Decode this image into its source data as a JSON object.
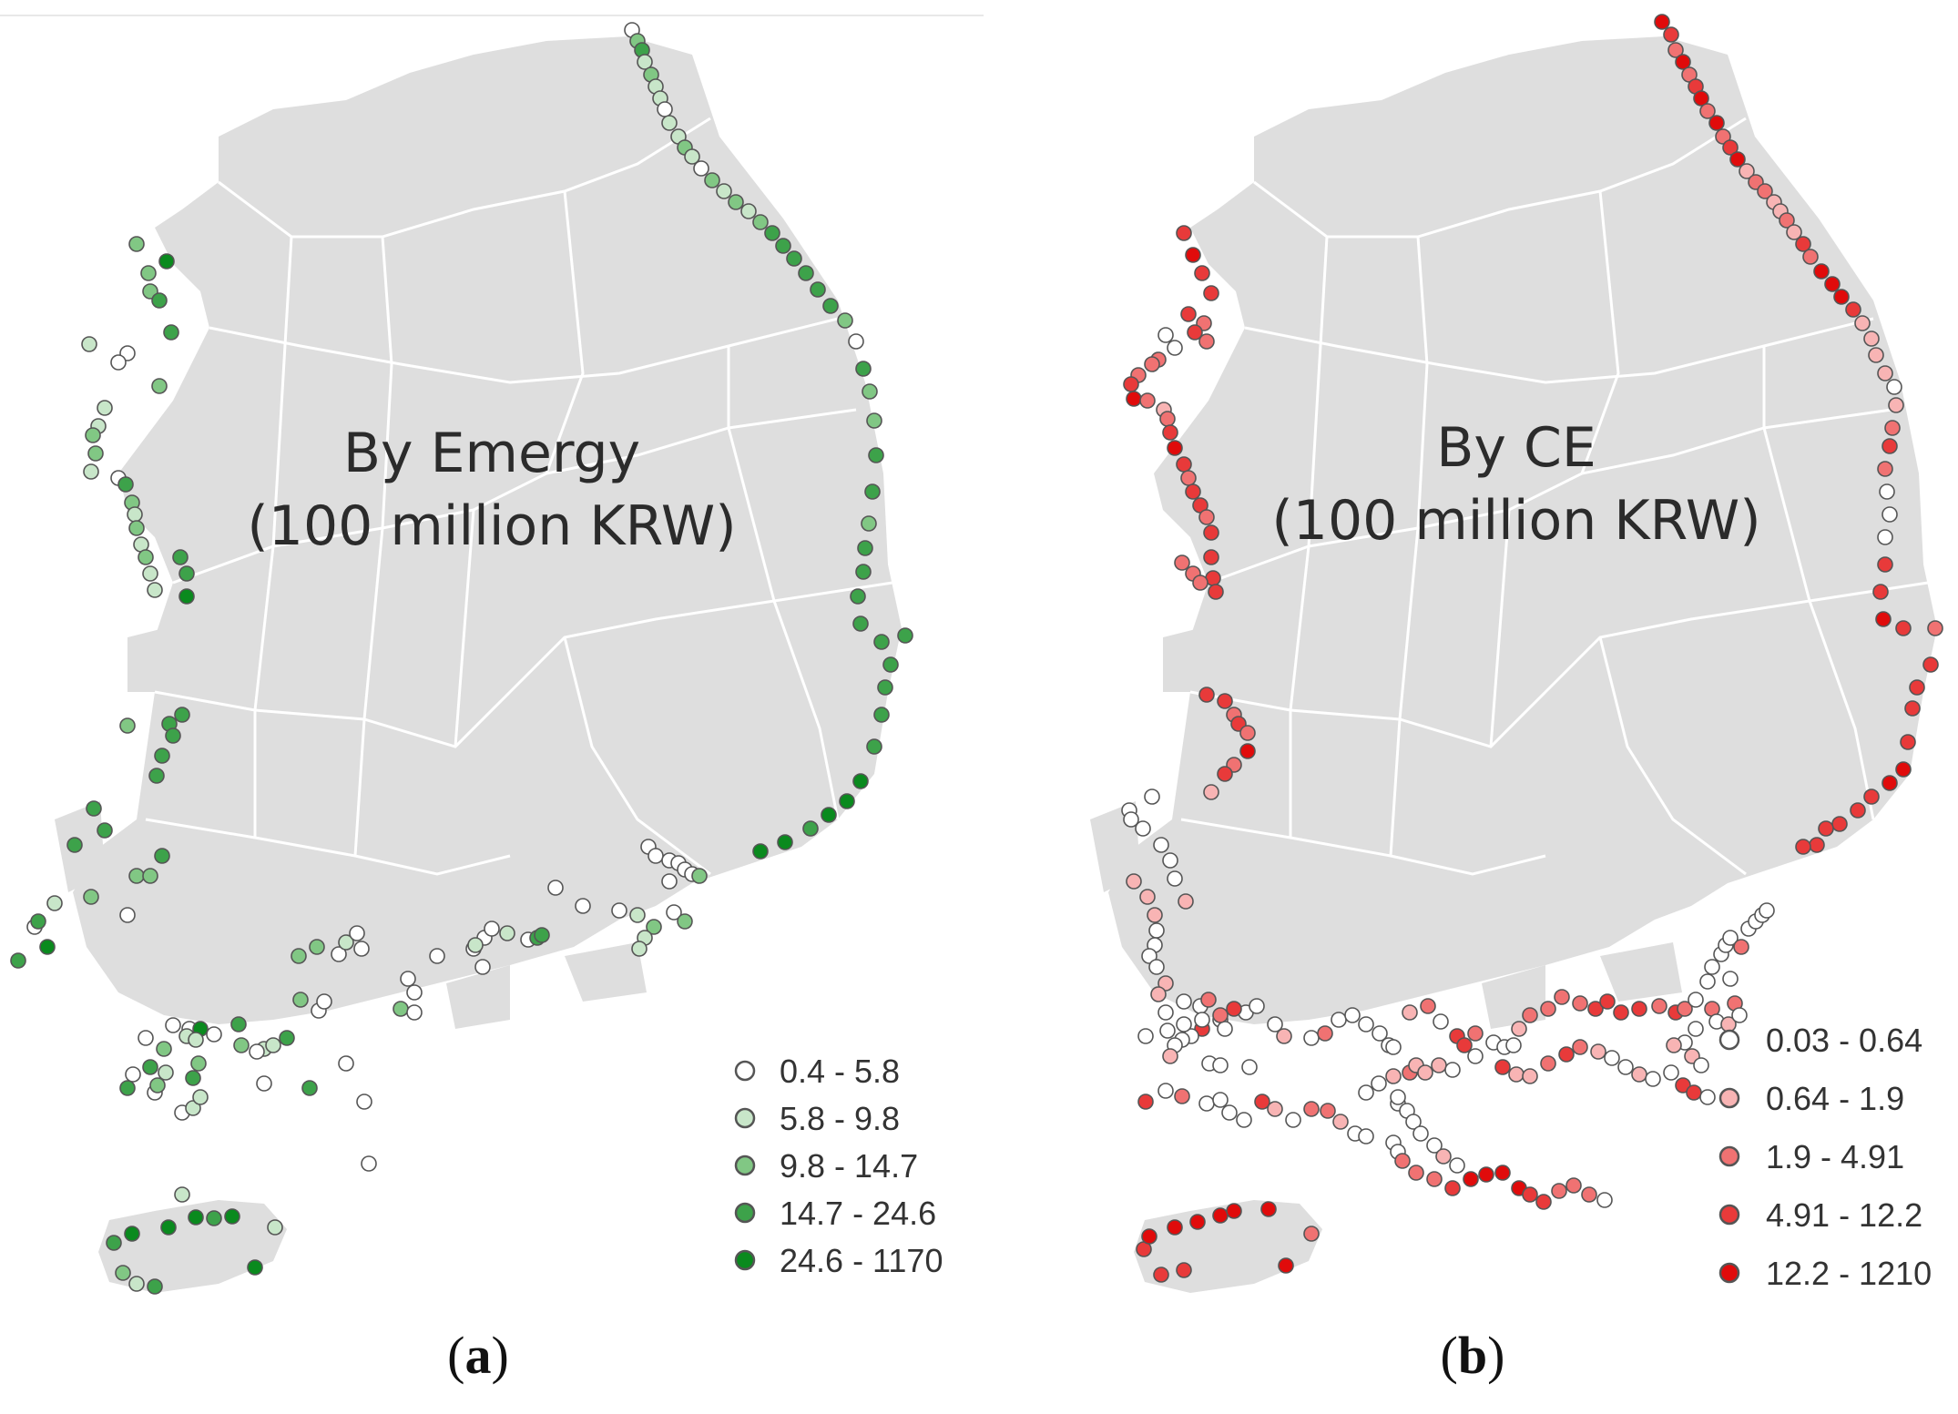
{
  "panels": [
    {
      "id": "a",
      "title_line1": "By Emergy",
      "title_line2": "(100 million KRW)",
      "caption_open": "(",
      "caption_letter": "a",
      "caption_close": ")",
      "stroke_color": "#555555",
      "legend": [
        {
          "label": "0.4 - 5.8",
          "color": "#ffffff"
        },
        {
          "label": "5.8 - 9.8",
          "color": "#c8e6c9"
        },
        {
          "label": "9.8 - 14.7",
          "color": "#81c784"
        },
        {
          "label": "14.7 - 24.6",
          "color": "#3da24a"
        },
        {
          "label": "24.6 - 1170",
          "color": "#0a8a1e"
        }
      ]
    },
    {
      "id": "b",
      "title_line1": "By CE",
      "title_line2": "(100 million KRW)",
      "caption_open": "(",
      "caption_letter": "b",
      "caption_close": ")",
      "stroke_color": "#555555",
      "legend": [
        {
          "label": "0.03 - 0.64",
          "color": "#ffffff"
        },
        {
          "label": "0.64 - 1.9",
          "color": "#f8b4b4"
        },
        {
          "label": "1.9 - 4.91",
          "color": "#f07272"
        },
        {
          "label": "4.91 - 12.2",
          "color": "#e83a3a"
        },
        {
          "label": "12.2 - 1210",
          "color": "#e00b0b"
        }
      ]
    }
  ],
  "land_color": "#dedede",
  "boundary_color": "#ffffff"
}
